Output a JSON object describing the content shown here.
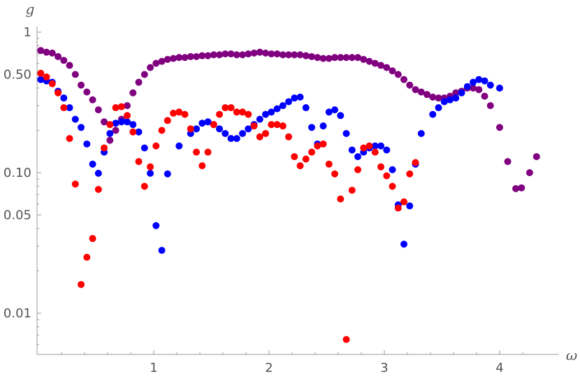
{
  "chart_data": {
    "type": "scatter",
    "title": "",
    "xlabel": "ω",
    "ylabel": "g",
    "x_scale": "linear",
    "y_scale": "log",
    "xlim": [
      0,
      4.4
    ],
    "ylim": [
      0.005,
      1.0
    ],
    "x_ticks": [
      {
        "value": 1,
        "label": "1"
      },
      {
        "value": 2,
        "label": "2"
      },
      {
        "value": 3,
        "label": "3"
      },
      {
        "value": 4,
        "label": "4"
      }
    ],
    "y_ticks": [
      {
        "value": 0.01,
        "label": "0.01"
      },
      {
        "value": 0.05,
        "label": "0.05"
      },
      {
        "value": 0.1,
        "label": "0.10"
      },
      {
        "value": 0.5,
        "label": "0.50"
      },
      {
        "value": 1.0,
        "label": "1"
      }
    ],
    "grid": false,
    "legend": "none",
    "series": [
      {
        "color": "#800080",
        "points": [
          [
            0.02,
            0.74
          ],
          [
            0.07,
            0.72
          ],
          [
            0.12,
            0.71
          ],
          [
            0.17,
            0.67
          ],
          [
            0.22,
            0.63
          ],
          [
            0.27,
            0.58
          ],
          [
            0.32,
            0.5
          ],
          [
            0.37,
            0.42
          ],
          [
            0.42,
            0.375
          ],
          [
            0.47,
            0.33
          ],
          [
            0.52,
            0.28
          ],
          [
            0.57,
            0.23
          ],
          [
            0.62,
            0.17
          ],
          [
            0.67,
            0.2
          ],
          [
            0.72,
            0.24
          ],
          [
            0.77,
            0.3
          ],
          [
            0.82,
            0.37
          ],
          [
            0.87,
            0.44
          ],
          [
            0.92,
            0.5
          ],
          [
            0.97,
            0.56
          ],
          [
            1.02,
            0.6
          ],
          [
            1.07,
            0.62
          ],
          [
            1.12,
            0.64
          ],
          [
            1.17,
            0.65
          ],
          [
            1.22,
            0.66
          ],
          [
            1.27,
            0.66
          ],
          [
            1.32,
            0.67
          ],
          [
            1.37,
            0.67
          ],
          [
            1.42,
            0.68
          ],
          [
            1.47,
            0.68
          ],
          [
            1.52,
            0.69
          ],
          [
            1.57,
            0.69
          ],
          [
            1.62,
            0.7
          ],
          [
            1.67,
            0.7
          ],
          [
            1.72,
            0.69
          ],
          [
            1.77,
            0.69
          ],
          [
            1.82,
            0.7
          ],
          [
            1.87,
            0.71
          ],
          [
            1.92,
            0.72
          ],
          [
            1.97,
            0.71
          ],
          [
            2.02,
            0.7
          ],
          [
            2.07,
            0.7
          ],
          [
            2.12,
            0.69
          ],
          [
            2.17,
            0.69
          ],
          [
            2.22,
            0.69
          ],
          [
            2.27,
            0.69
          ],
          [
            2.32,
            0.68
          ],
          [
            2.37,
            0.67
          ],
          [
            2.42,
            0.66
          ],
          [
            2.47,
            0.65
          ],
          [
            2.52,
            0.65
          ],
          [
            2.57,
            0.66
          ],
          [
            2.62,
            0.66
          ],
          [
            2.67,
            0.66
          ],
          [
            2.72,
            0.66
          ],
          [
            2.77,
            0.66
          ],
          [
            2.82,
            0.64
          ],
          [
            2.87,
            0.62
          ],
          [
            2.92,
            0.6
          ],
          [
            2.97,
            0.58
          ],
          [
            3.02,
            0.56
          ],
          [
            3.07,
            0.53
          ],
          [
            3.12,
            0.5
          ],
          [
            3.17,
            0.46
          ],
          [
            3.22,
            0.42
          ],
          [
            3.27,
            0.39
          ],
          [
            3.32,
            0.375
          ],
          [
            3.37,
            0.36
          ],
          [
            3.42,
            0.345
          ],
          [
            3.47,
            0.34
          ],
          [
            3.52,
            0.34
          ],
          [
            3.57,
            0.35
          ],
          [
            3.62,
            0.37
          ],
          [
            3.67,
            0.38
          ],
          [
            3.72,
            0.4
          ],
          [
            3.77,
            0.4
          ],
          [
            3.82,
            0.39
          ],
          [
            3.87,
            0.35
          ],
          [
            3.92,
            0.3
          ],
          [
            4.0,
            0.21
          ],
          [
            4.07,
            0.12
          ],
          [
            4.14,
            0.077
          ],
          [
            4.19,
            0.078
          ],
          [
            4.26,
            0.1
          ],
          [
            4.32,
            0.13
          ]
        ]
      },
      {
        "color": "#0000ff",
        "points": [
          [
            0.02,
            0.46
          ],
          [
            0.07,
            0.45
          ],
          [
            0.12,
            0.44
          ],
          [
            0.17,
            0.38
          ],
          [
            0.22,
            0.34
          ],
          [
            0.27,
            0.29
          ],
          [
            0.32,
            0.24
          ],
          [
            0.37,
            0.21
          ],
          [
            0.42,
            0.16
          ],
          [
            0.47,
            0.115
          ],
          [
            0.52,
            0.099
          ],
          [
            0.57,
            0.14
          ],
          [
            0.62,
            0.19
          ],
          [
            0.67,
            0.225
          ],
          [
            0.72,
            0.23
          ],
          [
            0.77,
            0.23
          ],
          [
            0.82,
            0.22
          ],
          [
            0.87,
            0.195
          ],
          [
            0.92,
            0.15
          ],
          [
            0.97,
            0.099
          ],
          [
            1.02,
            0.042
          ],
          [
            1.07,
            0.028
          ],
          [
            1.12,
            0.098
          ],
          [
            1.22,
            0.155
          ],
          [
            1.32,
            0.19
          ],
          [
            1.37,
            0.205
          ],
          [
            1.42,
            0.225
          ],
          [
            1.47,
            0.23
          ],
          [
            1.52,
            0.22
          ],
          [
            1.57,
            0.205
          ],
          [
            1.62,
            0.19
          ],
          [
            1.67,
            0.175
          ],
          [
            1.72,
            0.175
          ],
          [
            1.77,
            0.19
          ],
          [
            1.82,
            0.205
          ],
          [
            1.87,
            0.22
          ],
          [
            1.92,
            0.24
          ],
          [
            1.97,
            0.26
          ],
          [
            2.02,
            0.27
          ],
          [
            2.07,
            0.285
          ],
          [
            2.12,
            0.3
          ],
          [
            2.17,
            0.32
          ],
          [
            2.22,
            0.34
          ],
          [
            2.27,
            0.345
          ],
          [
            2.32,
            0.29
          ],
          [
            2.37,
            0.21
          ],
          [
            2.42,
            0.16
          ],
          [
            2.47,
            0.215
          ],
          [
            2.52,
            0.27
          ],
          [
            2.57,
            0.28
          ],
          [
            2.62,
            0.255
          ],
          [
            2.67,
            0.19
          ],
          [
            2.72,
            0.145
          ],
          [
            2.77,
            0.13
          ],
          [
            2.82,
            0.14
          ],
          [
            2.87,
            0.15
          ],
          [
            2.92,
            0.155
          ],
          [
            2.97,
            0.155
          ],
          [
            3.02,
            0.145
          ],
          [
            3.07,
            0.105
          ],
          [
            3.12,
            0.059
          ],
          [
            3.17,
            0.031
          ],
          [
            3.22,
            0.058
          ],
          [
            3.27,
            0.115
          ],
          [
            3.32,
            0.19
          ],
          [
            3.42,
            0.26
          ],
          [
            3.47,
            0.29
          ],
          [
            3.52,
            0.32
          ],
          [
            3.57,
            0.33
          ],
          [
            3.62,
            0.34
          ],
          [
            3.67,
            0.37
          ],
          [
            3.72,
            0.41
          ],
          [
            3.77,
            0.44
          ],
          [
            3.82,
            0.46
          ],
          [
            3.87,
            0.45
          ],
          [
            3.92,
            0.42
          ],
          [
            4.0,
            0.4
          ]
        ]
      },
      {
        "color": "#ff0000",
        "points": [
          [
            0.02,
            0.51
          ],
          [
            0.07,
            0.48
          ],
          [
            0.12,
            0.43
          ],
          [
            0.17,
            0.37
          ],
          [
            0.22,
            0.29
          ],
          [
            0.27,
            0.175
          ],
          [
            0.32,
            0.083
          ],
          [
            0.37,
            0.016
          ],
          [
            0.42,
            0.025
          ],
          [
            0.47,
            0.034
          ],
          [
            0.52,
            0.076
          ],
          [
            0.57,
            0.15
          ],
          [
            0.62,
            0.22
          ],
          [
            0.67,
            0.29
          ],
          [
            0.72,
            0.295
          ],
          [
            0.77,
            0.255
          ],
          [
            0.82,
            0.195
          ],
          [
            0.87,
            0.12
          ],
          [
            0.92,
            0.08
          ],
          [
            0.97,
            0.11
          ],
          [
            1.02,
            0.155
          ],
          [
            1.07,
            0.2
          ],
          [
            1.12,
            0.235
          ],
          [
            1.17,
            0.265
          ],
          [
            1.22,
            0.27
          ],
          [
            1.27,
            0.26
          ],
          [
            1.32,
            0.205
          ],
          [
            1.37,
            0.14
          ],
          [
            1.42,
            0.112
          ],
          [
            1.47,
            0.14
          ],
          [
            1.52,
            0.22
          ],
          [
            1.57,
            0.26
          ],
          [
            1.62,
            0.29
          ],
          [
            1.67,
            0.29
          ],
          [
            1.72,
            0.27
          ],
          [
            1.77,
            0.27
          ],
          [
            1.82,
            0.26
          ],
          [
            1.87,
            0.215
          ],
          [
            1.92,
            0.18
          ],
          [
            1.97,
            0.19
          ],
          [
            2.02,
            0.22
          ],
          [
            2.07,
            0.22
          ],
          [
            2.12,
            0.215
          ],
          [
            2.17,
            0.18
          ],
          [
            2.22,
            0.13
          ],
          [
            2.27,
            0.112
          ],
          [
            2.32,
            0.125
          ],
          [
            2.37,
            0.14
          ],
          [
            2.42,
            0.155
          ],
          [
            2.47,
            0.16
          ],
          [
            2.52,
            0.115
          ],
          [
            2.57,
            0.098
          ],
          [
            2.62,
            0.065
          ],
          [
            2.67,
            0.0065
          ],
          [
            2.72,
            0.075
          ],
          [
            2.77,
            0.105
          ],
          [
            2.82,
            0.15
          ],
          [
            2.87,
            0.155
          ],
          [
            2.92,
            0.14
          ],
          [
            2.97,
            0.11
          ],
          [
            3.02,
            0.095
          ],
          [
            3.07,
            0.08
          ],
          [
            3.12,
            0.056
          ],
          [
            3.17,
            0.062
          ],
          [
            3.22,
            0.098
          ],
          [
            3.27,
            0.118
          ]
        ]
      }
    ]
  }
}
